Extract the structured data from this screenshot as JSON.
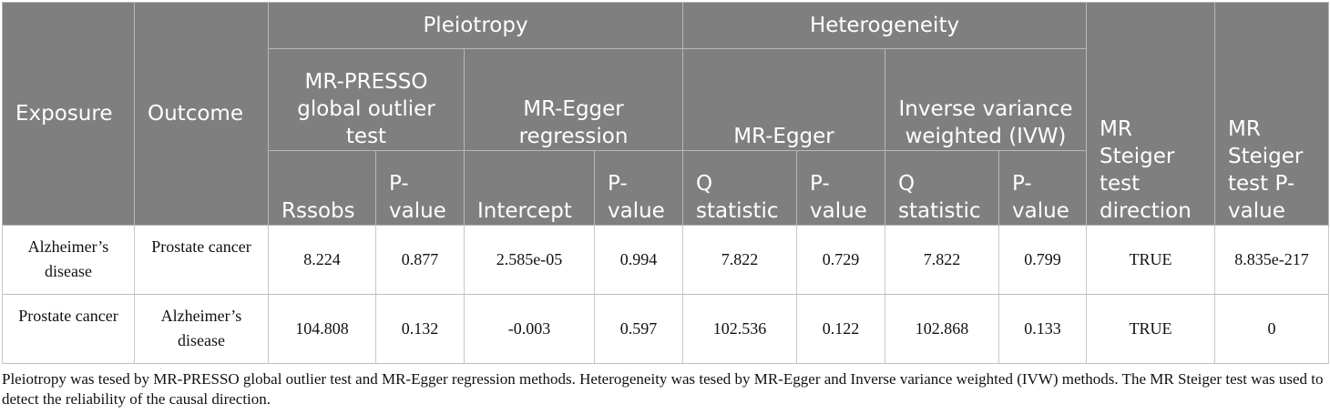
{
  "table": {
    "header": {
      "exposure": "Exposure",
      "outcome": "Outcome",
      "pleiotropy": "Pleiotropy",
      "heterogeneity": "Heterogeneity",
      "mr_presso": "MR-PRESSO global outlier test",
      "mr_egger_regression": "MR-Egger regression",
      "mr_egger": "MR-Egger",
      "ivw": "Inverse variance weighted (IVW)",
      "steiger_direction": "MR Steiger test direction",
      "steiger_pvalue": "MR Steiger test P-value",
      "rssobs": "Rssobs",
      "p_value": "P-value",
      "intercept": "Intercept",
      "q_statistic": "Q statistic"
    },
    "rows": [
      {
        "exposure": "Alzheimer’s disease",
        "outcome": "Prostate cancer",
        "presso_rssobs": "8.224",
        "presso_p": "0.877",
        "egger_intercept": "2.585e-05",
        "egger_intercept_p": "0.994",
        "egger_q": "7.822",
        "egger_q_p": "0.729",
        "ivw_q": "7.822",
        "ivw_q_p": "0.799",
        "steiger_direction": "TRUE",
        "steiger_p": "8.835e-217"
      },
      {
        "exposure": "Prostate cancer",
        "outcome": "Alzheimer’s disease",
        "presso_rssobs": "104.808",
        "presso_p": "0.132",
        "egger_intercept": "-0.003",
        "egger_intercept_p": "0.597",
        "egger_q": "102.536",
        "egger_q_p": "0.122",
        "ivw_q": "102.868",
        "ivw_q_p": "0.133",
        "steiger_direction": "TRUE",
        "steiger_p": "0"
      }
    ],
    "footnote": "Pleiotropy was tesed by MR-PRESSO global outlier test and MR-Egger regression methods. Heterogeneity was tesed by MR-Egger and Inverse variance weighted (IVW) methods. The MR Steiger test was used to detect the reliability of the causal direction."
  },
  "colors": {
    "header_bg": "#7f7f7f",
    "header_text": "#ffffff",
    "body_text": "#111111",
    "border": "#bdbdbd"
  }
}
